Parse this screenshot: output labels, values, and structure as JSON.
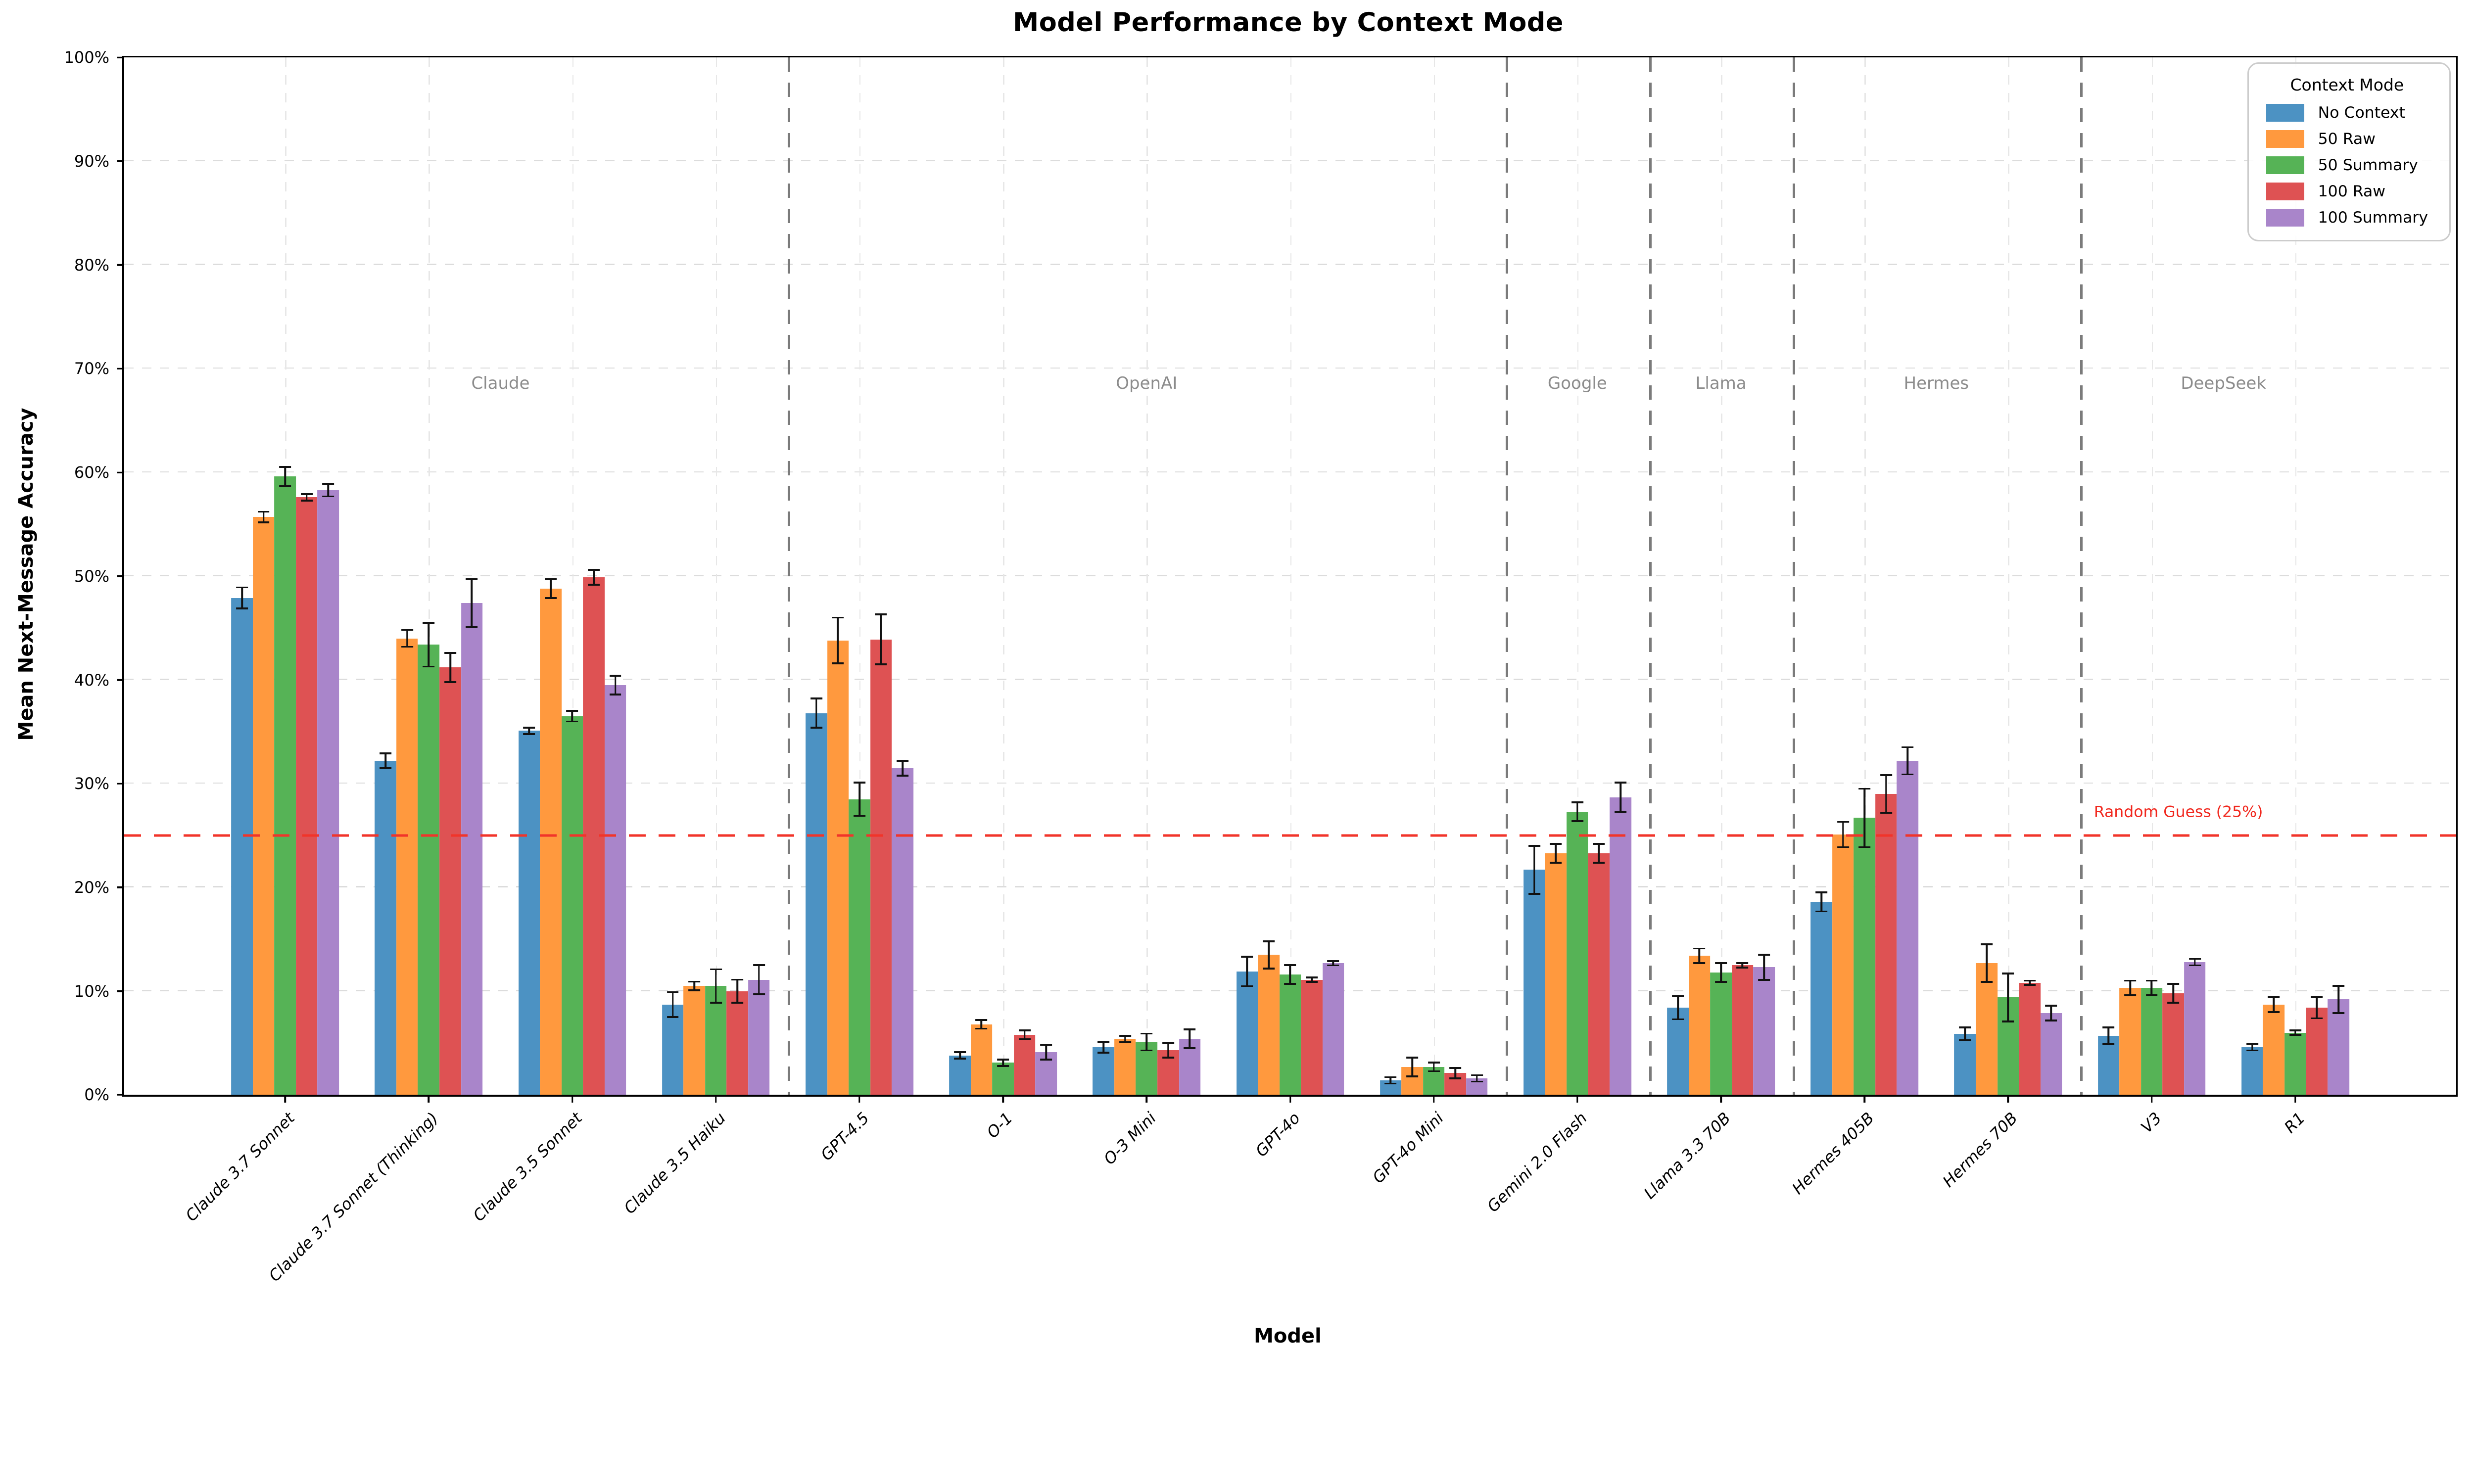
{
  "chart_data": {
    "type": "bar",
    "title": "Model Performance by Context Mode",
    "xlabel": "Model",
    "ylabel": "Mean Next-Message Accuracy",
    "ylim": [
      0,
      100
    ],
    "ytick_values": [
      0,
      10,
      20,
      30,
      40,
      50,
      60,
      70,
      80,
      90,
      100
    ],
    "ytick_labels": [
      "0%",
      "10%",
      "20%",
      "30%",
      "40%",
      "50%",
      "60%",
      "70%",
      "80%",
      "90%",
      "100%"
    ],
    "categories": [
      "Claude 3.7 Sonnet",
      "Claude 3.7 Sonnet (Thinking)",
      "Claude 3.5 Sonnet",
      "Claude 3.5 Haiku",
      "GPT-4.5",
      "O-1",
      "O-3 Mini",
      "GPT-4o",
      "GPT-4o Mini",
      "Gemini 2.0 Flash",
      "Llama 3.3 70B",
      "Hermes 405B",
      "Hermes 70B",
      "V3",
      "R1"
    ],
    "groups": [
      {
        "name": "Claude",
        "start": 0,
        "end": 3
      },
      {
        "name": "OpenAI",
        "start": 4,
        "end": 8
      },
      {
        "name": "Google",
        "start": 9,
        "end": 9
      },
      {
        "name": "Llama",
        "start": 10,
        "end": 10
      },
      {
        "name": "Hermes",
        "start": 11,
        "end": 12
      },
      {
        "name": "DeepSeek",
        "start": 13,
        "end": 14
      }
    ],
    "series": [
      {
        "name": "No Context",
        "color": "#4C92C3",
        "values": [
          47.9,
          32.2,
          35.1,
          8.7,
          36.8,
          3.8,
          4.6,
          11.9,
          1.4,
          21.7,
          8.4,
          18.6,
          5.9,
          5.7,
          4.6
        ],
        "errors": [
          1.1,
          0.8,
          0.4,
          1.3,
          1.5,
          0.4,
          0.6,
          1.5,
          0.4,
          2.4,
          1.2,
          1.0,
          0.7,
          0.9,
          0.4
        ]
      },
      {
        "name": "50 Raw",
        "color": "#FF993E",
        "values": [
          55.7,
          44.0,
          48.8,
          10.5,
          43.8,
          6.8,
          5.4,
          13.5,
          2.7,
          23.3,
          13.4,
          25.1,
          12.7,
          10.3,
          8.7
        ],
        "errors": [
          0.6,
          0.9,
          1.0,
          0.5,
          2.3,
          0.5,
          0.4,
          1.4,
          1.0,
          1.0,
          0.8,
          1.3,
          1.9,
          0.8,
          0.8
        ]
      },
      {
        "name": "50 Summary",
        "color": "#56B356",
        "values": [
          59.6,
          43.4,
          36.5,
          10.5,
          28.5,
          3.1,
          5.1,
          11.6,
          2.7,
          27.3,
          11.8,
          26.7,
          9.4,
          10.3,
          6.0
        ],
        "errors": [
          1.0,
          2.2,
          0.6,
          1.7,
          1.7,
          0.4,
          0.9,
          1.0,
          0.5,
          1.0,
          1.0,
          2.9,
          2.4,
          0.8,
          0.3
        ]
      },
      {
        "name": "100 Raw",
        "color": "#DE5253",
        "values": [
          57.6,
          41.2,
          49.9,
          10.0,
          43.9,
          5.8,
          4.3,
          11.1,
          2.1,
          23.3,
          12.5,
          29.0,
          10.8,
          9.8,
          8.4
        ],
        "errors": [
          0.4,
          1.5,
          0.8,
          1.2,
          2.5,
          0.5,
          0.8,
          0.3,
          0.6,
          1.0,
          0.3,
          1.9,
          0.3,
          1.0,
          1.1
        ]
      },
      {
        "name": "100 Summary",
        "color": "#A985CA",
        "values": [
          58.3,
          47.4,
          39.5,
          11.1,
          31.5,
          4.1,
          5.4,
          12.7,
          1.6,
          28.7,
          12.3,
          32.2,
          7.9,
          12.8,
          9.2
        ],
        "errors": [
          0.7,
          2.4,
          1.0,
          1.5,
          0.8,
          0.8,
          1.0,
          0.3,
          0.4,
          1.5,
          1.3,
          1.4,
          0.8,
          0.4,
          1.4
        ]
      }
    ],
    "reference_line": {
      "value": 25,
      "label": "Random Guess (25%)",
      "color": "#F1281E"
    },
    "legend": {
      "title": "Context Mode",
      "position": "top-right"
    },
    "grid": {
      "horizontal": true,
      "vertical": true,
      "style": "dashed"
    },
    "layout": {
      "first_tick_pct": 6.9,
      "last_tick_pct": 93.1,
      "cluster_width_pct": 4.62,
      "group_label_value": 68.6,
      "separator_color": "#7B7B7B",
      "hgrid_color": "#DCDCDC",
      "vgrid_color": "#E7E7E7"
    }
  }
}
